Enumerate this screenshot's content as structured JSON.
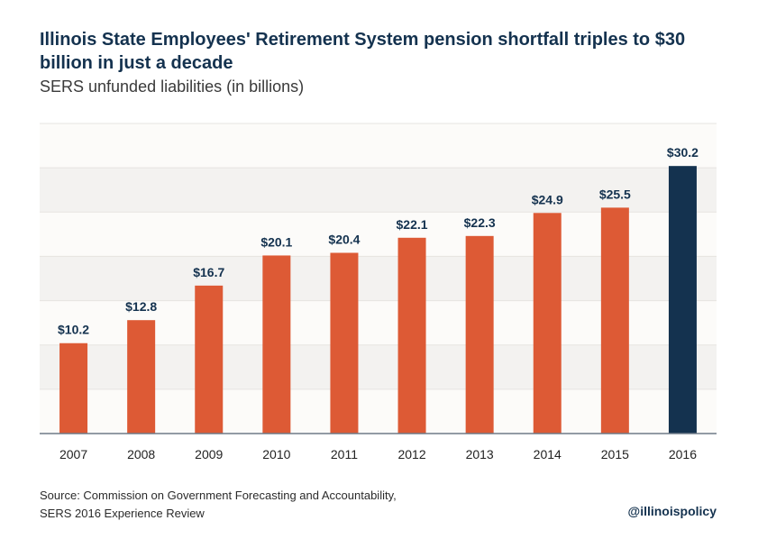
{
  "chart_data": {
    "type": "bar",
    "title": "Illinois State Employees' Retirement System pension shortfall triples to $30 billion in just a decade",
    "subtitle": "SERS unfunded liabilities (in billions)",
    "categories": [
      "2007",
      "2008",
      "2009",
      "2010",
      "2011",
      "2012",
      "2013",
      "2014",
      "2015",
      "2016"
    ],
    "values": [
      10.2,
      12.8,
      16.7,
      20.1,
      20.4,
      22.1,
      22.3,
      24.9,
      25.5,
      30.2
    ],
    "data_labels": [
      "$10.2",
      "$12.8",
      "$16.7",
      "$20.1",
      "$20.4",
      "$22.1",
      "$22.3",
      "$24.9",
      "$25.5",
      "$30.2"
    ],
    "highlight_index": 9,
    "ylim": [
      0,
      35
    ],
    "grid": true,
    "colors": {
      "bar": "#dd5a35",
      "highlight": "#14324f",
      "band_light": "#fcfbf9",
      "band_dark": "#f3f2f0",
      "label": "#14324f"
    }
  },
  "footer": {
    "source_line1": "Source: Commission on Government Forecasting and Accountability,",
    "source_line2": "SERS 2016 Experience Review",
    "handle": "@illinoispolicy"
  }
}
